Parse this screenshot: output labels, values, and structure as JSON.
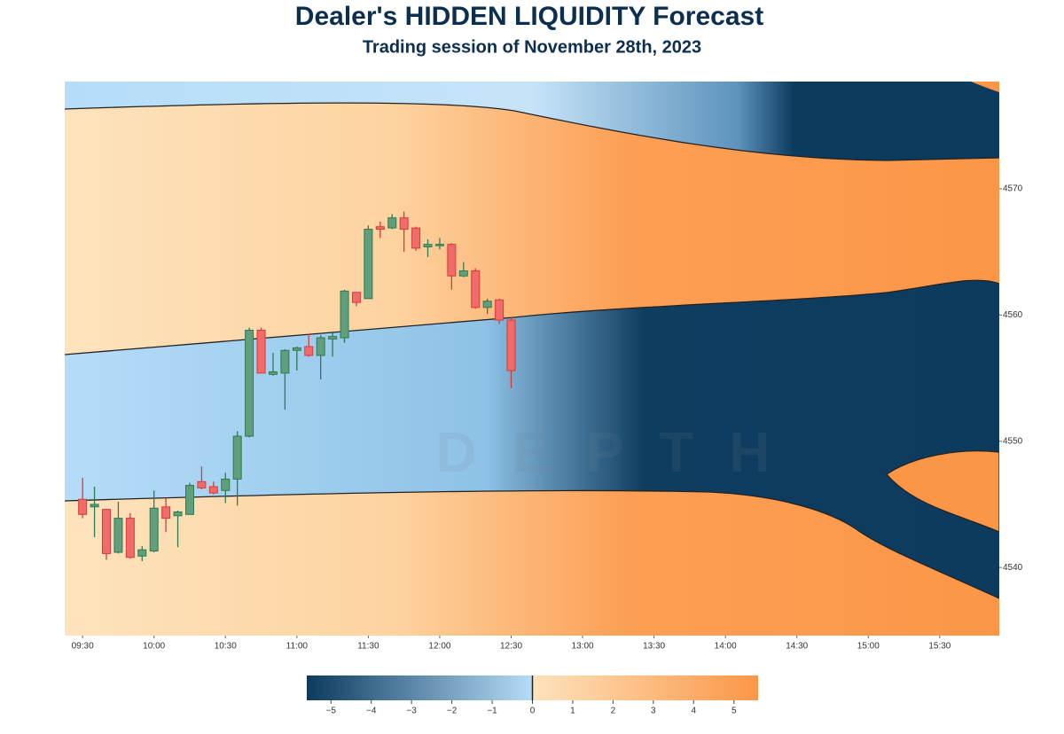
{
  "chart_data": {
    "type": "candlestick",
    "title": "Dealer's HIDDEN LIQUIDITY Forecast",
    "subtitle": "Trading session of November 28th, 2023",
    "watermark": "DEPTH",
    "x": [
      570,
      575,
      580,
      585,
      590,
      595,
      600,
      605,
      610,
      615,
      620,
      625,
      630,
      635,
      640,
      645,
      650,
      655,
      660,
      665,
      670,
      675,
      680,
      685,
      690,
      695,
      700,
      705,
      710,
      715,
      720,
      725,
      730,
      735,
      740,
      745,
      750
    ],
    "open": [
      4545.4,
      4544.8,
      4544.6,
      4541.2,
      4543.9,
      4540.9,
      4541.3,
      4544.8,
      4544.1,
      4544.2,
      4546.8,
      4546.4,
      4546.1,
      4547.0,
      4550.4,
      4558.8,
      4555.3,
      4555.4,
      4557.2,
      4557.5,
      4556.8,
      4558.1,
      4558.2,
      4561.8,
      4561.3,
      4567.0,
      4566.9,
      4567.7,
      4566.9,
      4565.4,
      4565.5,
      4565.6,
      4563.1,
      4563.5,
      4560.6,
      4561.2,
      4559.6
    ],
    "high": [
      4547.1,
      4546.4,
      4544.6,
      4545.2,
      4544.3,
      4541.7,
      4546.1,
      4545.5,
      4544.5,
      4546.7,
      4548.0,
      4546.8,
      4547.5,
      4550.8,
      4559.0,
      4559.0,
      4557.0,
      4557.3,
      4557.5,
      4558.5,
      4558.4,
      4558.6,
      4562.0,
      4561.8,
      4567.1,
      4567.4,
      4568.0,
      4568.2,
      4567.0,
      4566.0,
      4566.1,
      4565.7,
      4564.2,
      4563.7,
      4561.3,
      4561.3,
      4559.8
    ],
    "low": [
      4543.9,
      4542.4,
      4540.6,
      4541.1,
      4540.7,
      4540.5,
      4541.2,
      4542.8,
      4541.6,
      4544.2,
      4546.2,
      4545.8,
      4545.1,
      4544.9,
      4550.3,
      4555.4,
      4555.2,
      4552.5,
      4555.6,
      4556.7,
      4554.9,
      4556.7,
      4557.8,
      4560.7,
      4561.3,
      4566.1,
      4566.8,
      4565.0,
      4565.1,
      4564.6,
      4565.2,
      4562.0,
      4563.0,
      4560.5,
      4560.1,
      4559.3,
      4554.2
    ],
    "close": [
      4544.2,
      4545.0,
      4541.1,
      4543.9,
      4540.8,
      4541.4,
      4544.7,
      4543.9,
      4544.4,
      4546.5,
      4546.3,
      4545.9,
      4547.0,
      4550.4,
      4558.8,
      4555.4,
      4555.5,
      4557.2,
      4557.4,
      4556.8,
      4558.2,
      4558.3,
      4561.9,
      4561.0,
      4566.8,
      4566.8,
      4567.7,
      4566.8,
      4565.3,
      4565.6,
      4565.6,
      4563.1,
      4563.5,
      4560.6,
      4561.1,
      4559.6,
      4555.6
    ],
    "up_color": "#5f9f7d",
    "down_color": "#f26b6b",
    "xlim": [
      562.5,
      955
    ],
    "xticks": [
      {
        "value": 570,
        "label": "09:30"
      },
      {
        "value": 600,
        "label": "10:00"
      },
      {
        "value": 630,
        "label": "10:30"
      },
      {
        "value": 660,
        "label": "11:00"
      },
      {
        "value": 690,
        "label": "11:30"
      },
      {
        "value": 720,
        "label": "12:00"
      },
      {
        "value": 750,
        "label": "12:30"
      },
      {
        "value": 780,
        "label": "13:00"
      },
      {
        "value": 810,
        "label": "13:30"
      },
      {
        "value": 840,
        "label": "14:00"
      },
      {
        "value": 870,
        "label": "14:30"
      },
      {
        "value": 900,
        "label": "15:00"
      },
      {
        "value": 930,
        "label": "15:30"
      }
    ],
    "ylim": [
      4534.6,
      4578.5
    ],
    "yticks": [
      4540,
      4550,
      4560,
      4570
    ],
    "colorbar": {
      "colors": [
        "#0d3b5e",
        "#b5ddf8",
        "#fde3bd",
        "#fc9647"
      ],
      "range": [
        -5.6,
        5.6
      ],
      "ticks": [
        {
          "value": -5,
          "label": "−5"
        },
        {
          "value": -4,
          "label": "−4"
        },
        {
          "value": -3,
          "label": "−3"
        },
        {
          "value": -2,
          "label": "−2"
        },
        {
          "value": -1,
          "label": "−1"
        },
        0,
        1,
        2,
        3,
        4,
        5
      ]
    }
  }
}
